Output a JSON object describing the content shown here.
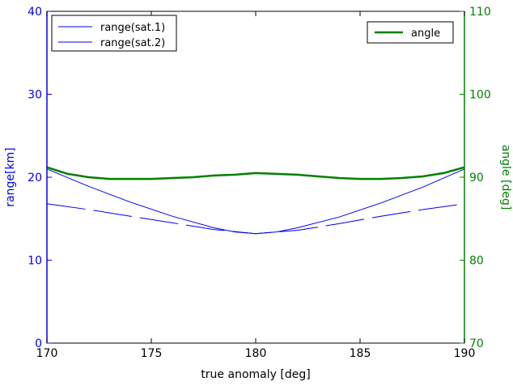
{
  "chart_data": {
    "type": "line",
    "title": "",
    "xlabel": "true anomaly [deg]",
    "xlim": [
      170,
      190
    ],
    "xticks": [
      170,
      175,
      180,
      185,
      190
    ],
    "y_left": {
      "label": "range[km]",
      "lim": [
        0,
        40
      ],
      "ticks": [
        0,
        10,
        20,
        30,
        40
      ],
      "color": "#0000ee"
    },
    "y_right": {
      "label": "angle [deg]",
      "lim": [
        70,
        110
      ],
      "ticks": [
        70,
        80,
        90,
        100,
        110
      ],
      "color": "#008000"
    },
    "series": [
      {
        "name": "range(sat.1)",
        "axis": "left",
        "color": "#0000ee",
        "style": "solid",
        "x": [
          170,
          172,
          174,
          176,
          178,
          179,
          180,
          181,
          182,
          184,
          186,
          188,
          190
        ],
        "values": [
          21.0,
          18.9,
          17.0,
          15.3,
          13.9,
          13.4,
          13.2,
          13.4,
          13.9,
          15.2,
          16.9,
          18.8,
          21.0
        ]
      },
      {
        "name": "range(sat.2)",
        "axis": "left",
        "color": "#0000ee",
        "style": "dashed",
        "x": [
          170,
          172,
          174,
          176,
          178,
          180,
          182,
          184,
          186,
          188,
          190
        ],
        "values": [
          16.8,
          16.1,
          15.3,
          14.5,
          13.7,
          13.2,
          13.6,
          14.4,
          15.3,
          16.1,
          16.8
        ]
      },
      {
        "name": "angle",
        "axis": "right",
        "color": "#008000",
        "style": "solid",
        "x": [
          170,
          171,
          172,
          173,
          174,
          175,
          176,
          177,
          178,
          179,
          180,
          181,
          182,
          183,
          184,
          185,
          186,
          187,
          188,
          189,
          190
        ],
        "values": [
          91.2,
          90.4,
          90.0,
          89.8,
          89.8,
          89.8,
          89.9,
          90.0,
          90.2,
          90.3,
          90.5,
          90.4,
          90.3,
          90.1,
          89.9,
          89.8,
          89.8,
          89.9,
          90.1,
          90.5,
          91.2
        ]
      }
    ],
    "legends": [
      {
        "placement": "top-left",
        "entries": [
          "range(sat.1)",
          "range(sat.2)"
        ]
      },
      {
        "placement": "top-right",
        "entries": [
          "angle"
        ]
      }
    ],
    "grid": false
  }
}
